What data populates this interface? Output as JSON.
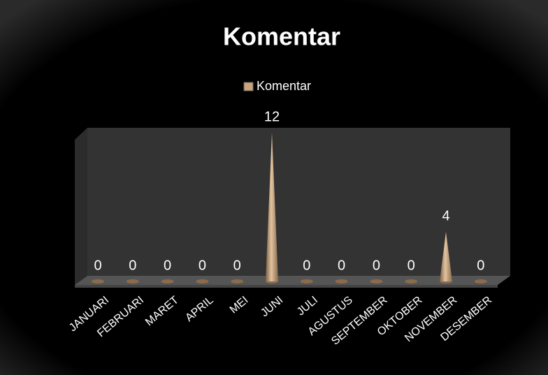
{
  "chart_data": {
    "type": "cone",
    "title": "Komentar",
    "categories": [
      "JANUARI",
      "FEBRUARI",
      "MARET",
      "APRIL",
      "MEI",
      "JUNI",
      "JULI",
      "AGUSTUS",
      "SEPTEMBER",
      "OKTOBER",
      "NOVEMBER",
      "DESEMBER"
    ],
    "series": [
      {
        "name": "Komentar",
        "color": "#c9a47c",
        "values": [
          0,
          0,
          0,
          0,
          0,
          12,
          0,
          0,
          0,
          0,
          4,
          0
        ]
      }
    ],
    "ylim": [
      0,
      12
    ]
  }
}
